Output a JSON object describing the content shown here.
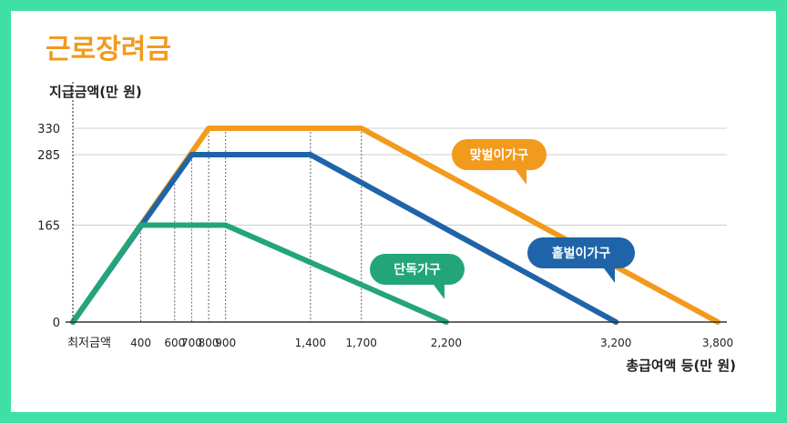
{
  "title": "근로장려금",
  "colors": {
    "background": "#3ee0a6",
    "title": "#f29a1c",
    "dual": "#f29a1c",
    "single_earner": "#1f64a8",
    "single": "#23a57a",
    "grid": "#cfcfcf",
    "axis": "#333333"
  },
  "chart_data": {
    "type": "line",
    "title": "근로장려금",
    "ylabel": "지급금액(만 원)",
    "xlabel": "총급여액 등(만 원)",
    "x_origin_label": "최저금액",
    "xlim": [
      0,
      3800
    ],
    "ylim": [
      0,
      330
    ],
    "x_ticks": [
      {
        "value": 400,
        "label": "400"
      },
      {
        "value": 600,
        "label": "600"
      },
      {
        "value": 700,
        "label": "700"
      },
      {
        "value": 800,
        "label": "800"
      },
      {
        "value": 900,
        "label": "900"
      },
      {
        "value": 1400,
        "label": "1,400"
      },
      {
        "value": 1700,
        "label": "1,700"
      },
      {
        "value": 2200,
        "label": "2,200"
      },
      {
        "value": 3200,
        "label": "3,200"
      },
      {
        "value": 3800,
        "label": "3,800"
      }
    ],
    "y_ticks": [
      {
        "value": 0,
        "label": "0"
      },
      {
        "value": 165,
        "label": "165"
      },
      {
        "value": 285,
        "label": "285"
      },
      {
        "value": 330,
        "label": "330"
      }
    ],
    "guides_x": [
      400,
      600,
      700,
      800,
      900,
      1400,
      1700
    ],
    "series": [
      {
        "name": "맞벌이가구",
        "color": "#f29a1c",
        "points": [
          [
            0,
            0
          ],
          [
            800,
            330
          ],
          [
            1700,
            330
          ],
          [
            3800,
            0
          ]
        ]
      },
      {
        "name": "홑벌이가구",
        "color": "#1f64a8",
        "points": [
          [
            0,
            0
          ],
          [
            700,
            285
          ],
          [
            1400,
            285
          ],
          [
            3200,
            0
          ]
        ]
      },
      {
        "name": "단독가구",
        "color": "#23a57a",
        "points": [
          [
            0,
            0
          ],
          [
            400,
            165
          ],
          [
            900,
            165
          ],
          [
            2200,
            0
          ]
        ]
      }
    ],
    "grid": true
  }
}
